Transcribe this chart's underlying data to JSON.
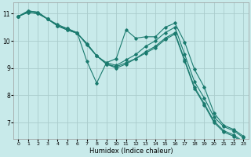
{
  "title": "",
  "xlabel": "Humidex (Indice chaleur)",
  "background_color": "#c8eaea",
  "grid_color": "#aacccc",
  "line_color": "#1a7a6e",
  "xlim": [
    -0.5,
    23.5
  ],
  "ylim": [
    6.4,
    11.4
  ],
  "yticks": [
    7,
    8,
    9,
    10,
    11
  ],
  "xticks": [
    0,
    1,
    2,
    3,
    4,
    5,
    6,
    7,
    8,
    9,
    10,
    11,
    12,
    13,
    14,
    15,
    16,
    17,
    18,
    19,
    20,
    21,
    22,
    23
  ],
  "series": [
    {
      "x": [
        0,
        1,
        2,
        3,
        4,
        5,
        6,
        7,
        8,
        9,
        10,
        11,
        12,
        13,
        14,
        15,
        16,
        17,
        18,
        19,
        20,
        21,
        22,
        23
      ],
      "y": [
        10.9,
        11.1,
        11.05,
        10.8,
        10.6,
        10.45,
        10.3,
        9.85,
        9.45,
        9.15,
        9.05,
        9.2,
        9.35,
        9.55,
        9.75,
        10.05,
        10.25,
        9.25,
        8.25,
        7.65,
        7.0,
        6.65,
        6.5,
        6.25
      ]
    },
    {
      "x": [
        0,
        1,
        2,
        3,
        4,
        5,
        6,
        7,
        8,
        9,
        10,
        11,
        12,
        13,
        14,
        15,
        16,
        17,
        18,
        19,
        20,
        21,
        22,
        23
      ],
      "y": [
        10.9,
        11.05,
        11.0,
        10.8,
        10.55,
        10.4,
        10.28,
        9.9,
        9.45,
        9.15,
        9.0,
        9.15,
        9.35,
        9.6,
        9.8,
        10.1,
        10.3,
        9.3,
        8.3,
        7.7,
        7.05,
        6.7,
        6.55,
        6.3
      ]
    },
    {
      "x": [
        0,
        1,
        2,
        3,
        4,
        5,
        6,
        7,
        8,
        9,
        10,
        11,
        12,
        13,
        14,
        15,
        16,
        17,
        18,
        19,
        20,
        21,
        22,
        23
      ],
      "y": [
        10.9,
        11.05,
        11.0,
        10.8,
        10.55,
        10.4,
        10.28,
        9.9,
        9.45,
        9.2,
        9.1,
        9.3,
        9.5,
        9.8,
        10.0,
        10.3,
        10.5,
        9.5,
        8.5,
        7.9,
        7.2,
        6.85,
        6.7,
        6.45
      ]
    },
    {
      "x": [
        0,
        1,
        2,
        3,
        4,
        5,
        6,
        7,
        8,
        9,
        10,
        11,
        12,
        13,
        14,
        15,
        16,
        17,
        18,
        19,
        20,
        21,
        22,
        23
      ],
      "y": [
        10.9,
        11.1,
        11.05,
        10.8,
        10.55,
        10.45,
        10.3,
        9.25,
        8.45,
        9.2,
        9.35,
        10.4,
        10.1,
        10.15,
        10.15,
        10.5,
        10.65,
        9.95,
        8.95,
        8.3,
        7.35,
        6.9,
        6.75,
        6.5
      ]
    }
  ]
}
